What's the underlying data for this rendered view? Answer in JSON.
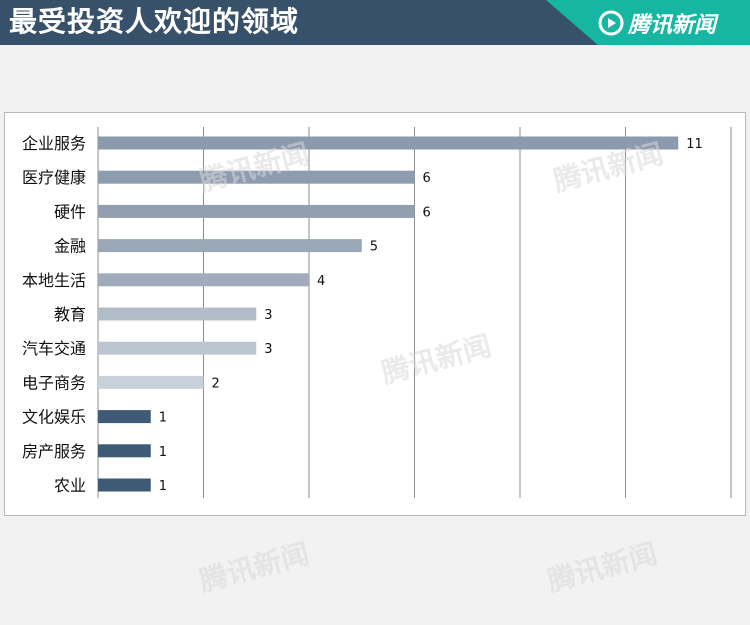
{
  "header": {
    "title": "最受投资人欢迎的领域",
    "brand": "腾讯新闻",
    "icon": "tencent-news-logo-icon"
  },
  "watermark": "腾讯新闻",
  "colors": {
    "title_bar": "#38516b",
    "brand_bar": "#17b6a3",
    "bar_dark": "#3e5a75",
    "gridline": "#8c8c8c"
  },
  "chart_data": {
    "type": "bar",
    "orientation": "horizontal",
    "title": "",
    "xlabel": "",
    "ylabel": "",
    "categories": [
      "企业服务",
      "医疗健康",
      "硬件",
      "金融",
      "本地生活",
      "教育",
      "汽车交通",
      "电子商务",
      "文化娱乐",
      "房产服务",
      "农业"
    ],
    "values": [
      11,
      6,
      6,
      5,
      4,
      3,
      3,
      2,
      1,
      1,
      1
    ],
    "bar_colors": [
      "#8c9aad",
      "#8e9caf",
      "#919fb1",
      "#9aa7b7",
      "#a0acbc",
      "#b1bcc9",
      "#bcc6d1",
      "#c9d1da",
      "#3e5a75",
      "#3e5a75",
      "#3e5a75"
    ],
    "xlim": [
      0,
      12
    ],
    "grid": true,
    "data_labels": true,
    "legend": "none"
  }
}
